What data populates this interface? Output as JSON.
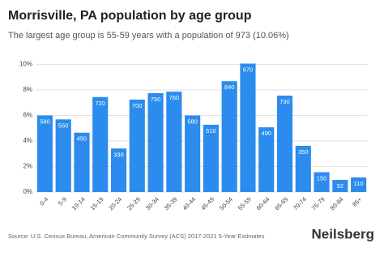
{
  "chart_data": {
    "type": "bar",
    "title": "Morrisville, PA population by age group",
    "subtitle": "The largest age group is 55-59 years with a population of 973 (10.06%)",
    "source": "Source: U.S. Census Bureau, American Community Survey (ACS) 2017-2021 5-Year Estimates",
    "brand": "Neilsberg",
    "categories": [
      "0-4",
      "5-9",
      "10-14",
      "15-19",
      "20-24",
      "25-29",
      "30-34",
      "35-39",
      "40-44",
      "45-49",
      "50-54",
      "55-59",
      "60-64",
      "65-69",
      "70-74",
      "75-79",
      "80-84",
      "85+"
    ],
    "values": [
      6.0,
      5.69,
      4.65,
      7.44,
      3.41,
      7.24,
      7.75,
      7.86,
      6.0,
      5.27,
      8.68,
      10.06,
      5.07,
      7.55,
      3.62,
      1.55,
      0.95,
      1.14
    ],
    "populations": [
      580,
      550,
      450,
      720,
      330,
      700,
      750,
      760,
      580,
      510,
      840,
      970,
      490,
      730,
      350,
      150,
      92,
      110
    ],
    "color": "#2b8cee",
    "ylim": [
      0,
      10.6
    ],
    "yticks": [
      {
        "value": 0,
        "label": "0%"
      },
      {
        "value": 2,
        "label": "2%"
      },
      {
        "value": 4,
        "label": "4%"
      },
      {
        "value": 6,
        "label": "6%"
      },
      {
        "value": 8,
        "label": "8%"
      },
      {
        "value": 10,
        "label": "10%"
      }
    ],
    "grid": true
  }
}
